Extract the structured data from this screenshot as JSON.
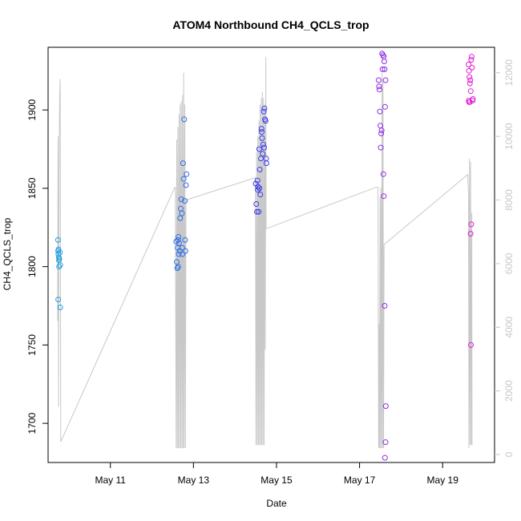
{
  "chart_data": {
    "type": "scatter",
    "title": "ATOM4 Northbound CH4_QCLS_trop",
    "xlabel": "Date",
    "ylabel": "CH4_QCLS_trop",
    "xlim": [
      "2018-05-09T12:00",
      "2018-05-20T06:00"
    ],
    "ylim": [
      1675,
      1940
    ],
    "ylim_right": [
      -250,
      12800
    ],
    "x_ticks": [
      {
        "date": "2018-05-11T00:00",
        "label": "May 11"
      },
      {
        "date": "2018-05-13T00:00",
        "label": "May 13"
      },
      {
        "date": "2018-05-15T00:00",
        "label": "May 15"
      },
      {
        "date": "2018-05-17T00:00",
        "label": "May 17"
      },
      {
        "date": "2018-05-19T00:00",
        "label": "May 19"
      }
    ],
    "y_ticks": [
      1700,
      1750,
      1800,
      1850,
      1900
    ],
    "y_ticks_right": [
      0,
      2000,
      4000,
      6000,
      8000,
      10000,
      12000
    ],
    "grid": false,
    "colors": {
      "flight1": "#1f9fe3",
      "flight2": "#2f6fe6",
      "flight3": "#3b3bea",
      "flight4": "#8f2ee6",
      "flight5": "#e01fd4",
      "altitude_line": "#c8c8c8"
    },
    "series": [
      {
        "color_key": "flight1",
        "points": [
          [
            "2018-05-09T17:45",
            1817
          ],
          [
            "2018-05-09T17:50",
            1810
          ],
          [
            "2018-05-09T17:55",
            1808
          ],
          [
            "2018-05-09T18:00",
            1811
          ],
          [
            "2018-05-09T18:10",
            1806
          ],
          [
            "2018-05-09T18:15",
            1804
          ],
          [
            "2018-05-09T18:20",
            1800
          ],
          [
            "2018-05-09T18:30",
            1805
          ],
          [
            "2018-05-09T18:45",
            1809
          ],
          [
            "2018-05-09T19:00",
            1801
          ],
          [
            "2018-05-09T17:50",
            1779
          ],
          [
            "2018-05-09T19:00",
            1774
          ]
        ]
      },
      {
        "color_key": "flight2",
        "points": [
          [
            "2018-05-12T14:00",
            1816
          ],
          [
            "2018-05-12T14:20",
            1803
          ],
          [
            "2018-05-12T14:40",
            1799
          ],
          [
            "2018-05-12T15:00",
            1817
          ],
          [
            "2018-05-12T15:20",
            1819
          ],
          [
            "2018-05-12T15:40",
            1815
          ],
          [
            "2018-05-12T16:00",
            1810
          ],
          [
            "2018-05-12T16:20",
            1831
          ],
          [
            "2018-05-12T16:40",
            1837
          ],
          [
            "2018-05-12T17:00",
            1843
          ],
          [
            "2018-05-12T17:20",
            1834
          ],
          [
            "2018-05-12T17:30",
            1812
          ],
          [
            "2018-05-12T17:40",
            1808
          ],
          [
            "2018-05-12T18:00",
            1866
          ],
          [
            "2018-05-12T18:20",
            1856
          ],
          [
            "2018-05-12T18:40",
            1894
          ],
          [
            "2018-05-12T19:00",
            1842
          ],
          [
            "2018-05-12T19:10",
            1817
          ],
          [
            "2018-05-12T19:20",
            1810
          ],
          [
            "2018-05-12T19:40",
            1852
          ],
          [
            "2018-05-12T20:00",
            1859
          ],
          [
            "2018-05-12T15:30",
            1808
          ],
          [
            "2018-05-12T14:50",
            1812
          ],
          [
            "2018-05-12T15:10",
            1800
          ]
        ]
      },
      {
        "color_key": "flight3",
        "points": [
          [
            "2018-05-14T12:00",
            1853
          ],
          [
            "2018-05-14T12:20",
            1840
          ],
          [
            "2018-05-14T12:40",
            1835
          ],
          [
            "2018-05-14T13:00",
            1855
          ],
          [
            "2018-05-14T13:20",
            1851
          ],
          [
            "2018-05-14T13:40",
            1835
          ],
          [
            "2018-05-14T14:00",
            1875
          ],
          [
            "2018-05-14T14:20",
            1862
          ],
          [
            "2018-05-14T14:40",
            1846
          ],
          [
            "2018-05-14T15:00",
            1869
          ],
          [
            "2018-05-14T15:20",
            1888
          ],
          [
            "2018-05-14T15:40",
            1882
          ],
          [
            "2018-05-14T16:00",
            1872
          ],
          [
            "2018-05-14T16:20",
            1878
          ],
          [
            "2018-05-14T16:40",
            1899
          ],
          [
            "2018-05-14T17:00",
            1901
          ],
          [
            "2018-05-14T17:20",
            1894
          ],
          [
            "2018-05-14T17:40",
            1893
          ],
          [
            "2018-05-14T18:00",
            1869
          ],
          [
            "2018-05-14T18:10",
            1866
          ],
          [
            "2018-05-14T15:30",
            1886
          ],
          [
            "2018-05-14T16:50",
            1876
          ],
          [
            "2018-05-14T14:10",
            1850
          ],
          [
            "2018-05-14T13:10",
            1849
          ]
        ]
      },
      {
        "color_key": "flight4",
        "points": [
          [
            "2018-05-17T11:00",
            1919
          ],
          [
            "2018-05-17T11:15",
            1915
          ],
          [
            "2018-05-17T11:30",
            1913
          ],
          [
            "2018-05-17T11:45",
            1899
          ],
          [
            "2018-05-17T12:00",
            1890
          ],
          [
            "2018-05-17T12:15",
            1876
          ],
          [
            "2018-05-17T12:30",
            1885
          ],
          [
            "2018-05-17T12:45",
            1887
          ],
          [
            "2018-05-17T13:00",
            1936
          ],
          [
            "2018-05-17T13:15",
            1926
          ],
          [
            "2018-05-17T13:30",
            1935
          ],
          [
            "2018-05-17T14:00",
            1934
          ],
          [
            "2018-05-17T14:15",
            1931
          ],
          [
            "2018-05-17T14:30",
            1926
          ],
          [
            "2018-05-17T14:45",
            1902
          ],
          [
            "2018-05-17T15:00",
            1919
          ],
          [
            "2018-05-17T13:45",
            1859
          ],
          [
            "2018-05-17T14:00",
            1845
          ],
          [
            "2018-05-17T14:30",
            1775
          ],
          [
            "2018-05-17T15:10",
            1711
          ],
          [
            "2018-05-17T15:00",
            1688
          ],
          [
            "2018-05-17T14:40",
            1678
          ]
        ]
      },
      {
        "color_key": "flight5",
        "points": [
          [
            "2018-05-19T15:00",
            1929
          ],
          [
            "2018-05-19T15:15",
            1925
          ],
          [
            "2018-05-19T15:30",
            1921
          ],
          [
            "2018-05-19T15:45",
            1917
          ],
          [
            "2018-05-19T16:00",
            1919
          ],
          [
            "2018-05-19T16:15",
            1912
          ],
          [
            "2018-05-19T16:30",
            1932
          ],
          [
            "2018-05-19T16:45",
            1934
          ],
          [
            "2018-05-19T17:00",
            1927
          ],
          [
            "2018-05-19T17:15",
            1906
          ],
          [
            "2018-05-19T17:30",
            1907
          ],
          [
            "2018-05-19T15:05",
            1906
          ],
          [
            "2018-05-19T15:20",
            1905
          ],
          [
            "2018-05-19T15:40",
            1905
          ],
          [
            "2018-05-19T16:10",
            1821
          ],
          [
            "2018-05-19T16:30",
            1827
          ],
          [
            "2018-05-19T16:20",
            1750
          ]
        ]
      }
    ],
    "altitude_series": {
      "name": "altitude",
      "axis": "right",
      "points": [
        [
          "2018-05-09T17:30",
          4200
        ],
        [
          "2018-05-09T17:48",
          10000
        ],
        [
          "2018-05-09T18:05",
          1500
        ],
        [
          "2018-05-09T18:20",
          9000
        ],
        [
          "2018-05-09T18:40",
          11200
        ],
        [
          "2018-05-09T19:00",
          11800
        ],
        [
          "2018-05-09T19:20",
          400
        ],
        [
          "2018-05-12T13:10",
          8400
        ],
        [
          "2018-05-12T13:30",
          8400
        ],
        [
          "2018-05-12T14:00",
          200
        ],
        [
          "2018-05-12T14:20",
          9900
        ],
        [
          "2018-05-12T14:40",
          200
        ],
        [
          "2018-05-12T15:00",
          10300
        ],
        [
          "2018-05-12T15:20",
          200
        ],
        [
          "2018-05-12T15:40",
          10700
        ],
        [
          "2018-05-12T16:00",
          200
        ],
        [
          "2018-05-12T16:20",
          11000
        ],
        [
          "2018-05-12T16:40",
          200
        ],
        [
          "2018-05-12T17:00",
          11100
        ],
        [
          "2018-05-12T17:20",
          200
        ],
        [
          "2018-05-12T17:40",
          11300
        ],
        [
          "2018-05-12T18:00",
          200
        ],
        [
          "2018-05-12T18:20",
          12000
        ],
        [
          "2018-05-12T18:40",
          200
        ],
        [
          "2018-05-12T19:00",
          11000
        ],
        [
          "2018-05-12T19:20",
          200
        ],
        [
          "2018-05-12T19:40",
          8000
        ],
        [
          "2018-05-14T11:50",
          8700
        ],
        [
          "2018-05-14T12:10",
          300
        ],
        [
          "2018-05-14T12:30",
          9500
        ],
        [
          "2018-05-14T12:50",
          300
        ],
        [
          "2018-05-14T13:10",
          10000
        ],
        [
          "2018-05-14T13:30",
          300
        ],
        [
          "2018-05-14T13:50",
          10500
        ],
        [
          "2018-05-14T14:10",
          300
        ],
        [
          "2018-05-14T14:30",
          11000
        ],
        [
          "2018-05-14T14:50",
          300
        ],
        [
          "2018-05-14T15:10",
          11200
        ],
        [
          "2018-05-14T15:30",
          300
        ],
        [
          "2018-05-14T15:50",
          11400
        ],
        [
          "2018-05-14T16:10",
          300
        ],
        [
          "2018-05-14T16:30",
          11200
        ],
        [
          "2018-05-14T16:50",
          300
        ],
        [
          "2018-05-14T17:10",
          11000
        ],
        [
          "2018-05-14T17:30",
          3300
        ],
        [
          "2018-05-14T17:50",
          12500
        ],
        [
          "2018-05-14T18:00",
          7100
        ],
        [
          "2018-05-17T09:30",
          8400
        ],
        [
          "2018-05-17T10:40",
          8400
        ],
        [
          "2018-05-17T11:00",
          200
        ],
        [
          "2018-05-17T11:15",
          4100
        ],
        [
          "2018-05-17T11:30",
          200
        ],
        [
          "2018-05-17T11:50",
          8100
        ],
        [
          "2018-05-17T12:05",
          200
        ],
        [
          "2018-05-17T12:20",
          8400
        ],
        [
          "2018-05-17T12:40",
          200
        ],
        [
          "2018-05-17T13:00",
          12000
        ],
        [
          "2018-05-17T13:15",
          200
        ],
        [
          "2018-05-17T13:30",
          11800
        ],
        [
          "2018-05-17T13:50",
          200
        ],
        [
          "2018-05-17T14:10",
          6600
        ],
        [
          "2018-05-19T14:30",
          8800
        ],
        [
          "2018-05-19T15:00",
          8100
        ],
        [
          "2018-05-19T15:10",
          200
        ],
        [
          "2018-05-19T15:30",
          9300
        ],
        [
          "2018-05-19T15:50",
          300
        ],
        [
          "2018-05-19T16:10",
          9200
        ],
        [
          "2018-05-19T16:30",
          300
        ],
        [
          "2018-05-19T16:50",
          7600
        ],
        [
          "2018-05-19T17:00",
          300
        ]
      ]
    }
  }
}
